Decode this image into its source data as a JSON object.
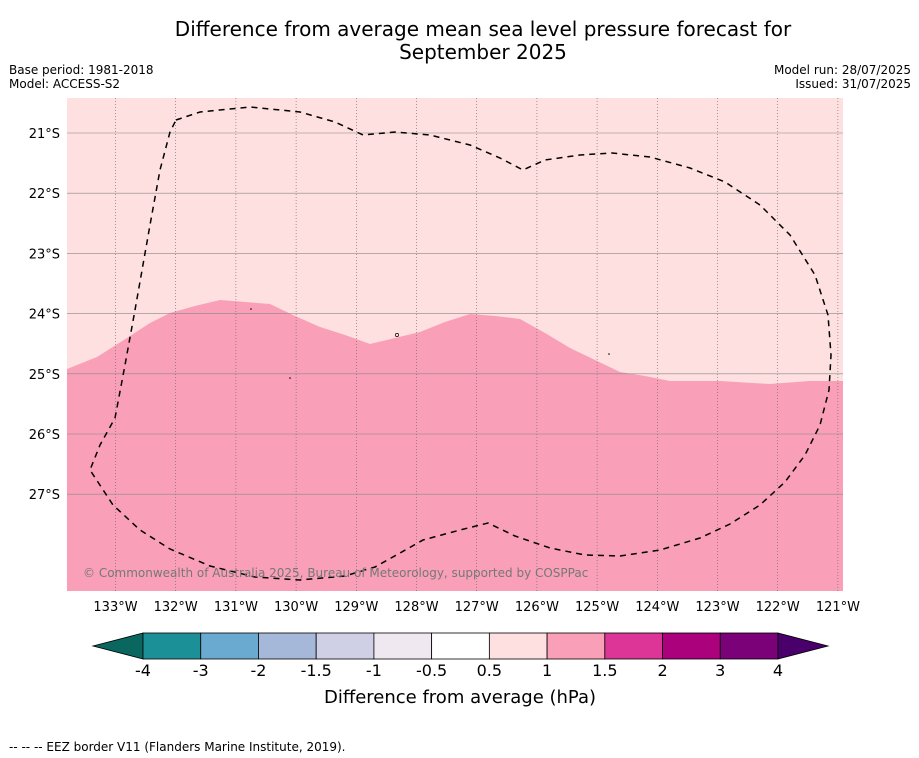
{
  "title_line1": "Difference from average mean sea level pressure forecast for",
  "title_line2": "September 2025",
  "meta_left": {
    "base_period": "Base period: 1981-2018",
    "model": "Model: ACCESS-S2"
  },
  "meta_right": {
    "model_run": "Model run: 28/07/2025",
    "issued": "Issued: 31/07/2025"
  },
  "map": {
    "lon_labels": [
      "133°W",
      "132°W",
      "131°W",
      "130°W",
      "129°W",
      "128°W",
      "127°W",
      "126°W",
      "125°W",
      "124°W",
      "123°W",
      "122°W",
      "121°W"
    ],
    "lat_labels": [
      "21°S",
      "22°S",
      "23°S",
      "24°S",
      "25°S",
      "26°S",
      "27°S"
    ],
    "copyright": "© Commonwealth of Australia 2025, Bureau of Meteorology, supported by COSPPac",
    "region_colors": {
      "upper": "#fde0df",
      "lower": "#f99fb8"
    },
    "border_style": "dashed"
  },
  "colorbar": {
    "tick_labels": [
      "-4",
      "-3",
      "-2",
      "-1.5",
      "-1",
      "-0.5",
      "0.5",
      "1",
      "1.5",
      "2",
      "3",
      "4"
    ],
    "colors": [
      "#1b9096",
      "#6aaad0",
      "#a5b8da",
      "#cfd0e6",
      "#efe8f1",
      "#ffffff",
      "#fde0df",
      "#f99fb8",
      "#dd3597",
      "#ac017d",
      "#7a0177"
    ],
    "low_extend_color": "#09675f",
    "high_extend_color": "#4a006a",
    "label": "Difference from average (hPa)"
  },
  "footer": "-- -- -- EEZ border V11 (Flanders Marine Institute, 2019)."
}
